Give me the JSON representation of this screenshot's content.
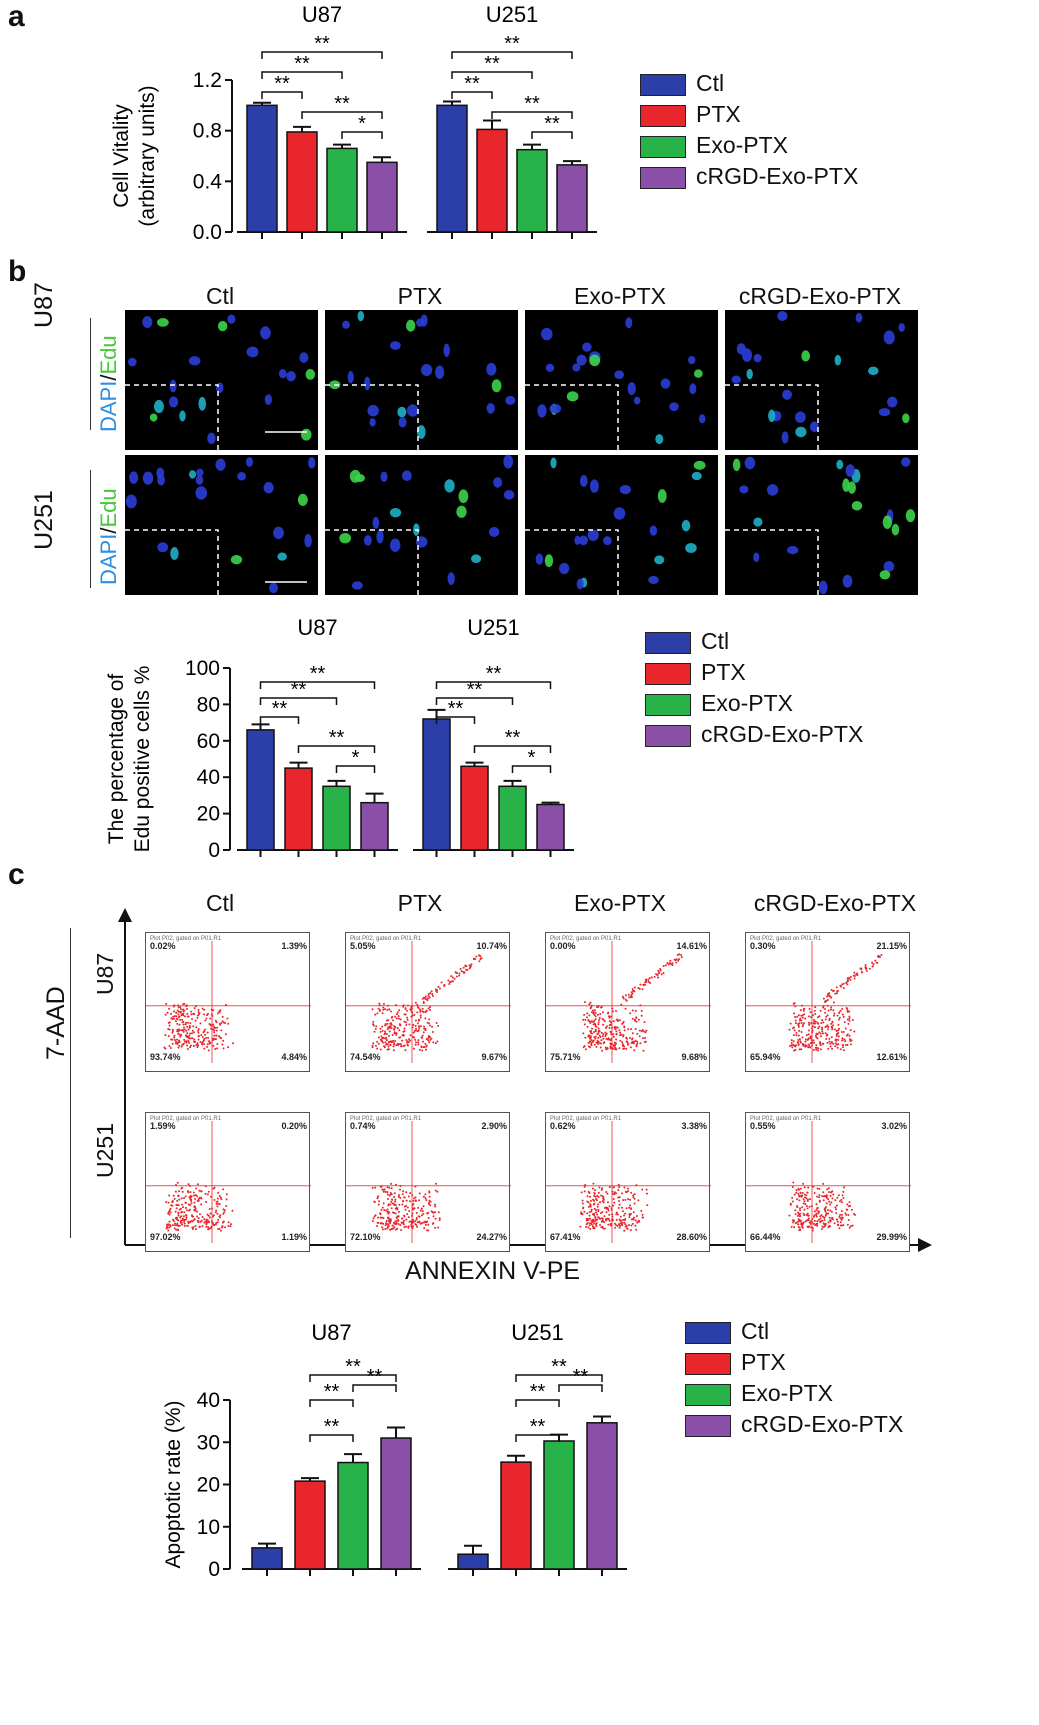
{
  "panels": {
    "a": "a",
    "b": "b",
    "c": "c"
  },
  "colors": {
    "ctl": "#2c3ea8",
    "ptx": "#e8262c",
    "exo": "#28b34a",
    "crgd": "#8a4fa6"
  },
  "legend": [
    "Ctl",
    "PTX",
    "Exo-PTX",
    "cRGD-Exo-PTX"
  ],
  "chart_data": [
    {
      "id": "cell-vitality",
      "type": "bar",
      "groups": [
        "U87",
        "U251"
      ],
      "categories": [
        "Ctl",
        "PTX",
        "Exo-PTX",
        "cRGD-Exo-PTX"
      ],
      "series": [
        {
          "name": "U87",
          "values": [
            1.0,
            0.79,
            0.66,
            0.55
          ],
          "errors": [
            0.02,
            0.04,
            0.03,
            0.04
          ]
        },
        {
          "name": "U251",
          "values": [
            1.0,
            0.81,
            0.65,
            0.53
          ],
          "errors": [
            0.03,
            0.07,
            0.04,
            0.03
          ]
        }
      ],
      "ylabel_line1": "Cell Vitality",
      "ylabel_line2": "(arbitrary units)",
      "yticks": [
        "0.0",
        "0.4",
        "0.8",
        "1.2"
      ],
      "ylim": [
        0,
        1.2
      ],
      "significance": [
        "**",
        "**",
        "**",
        "**",
        "*",
        "**",
        "**",
        "**",
        "**",
        "**"
      ]
    },
    {
      "id": "edu-percentage",
      "type": "bar",
      "groups": [
        "U87",
        "U251"
      ],
      "categories": [
        "Ctl",
        "PTX",
        "Exo-PTX",
        "cRGD-Exo-PTX"
      ],
      "series": [
        {
          "name": "U87",
          "values": [
            66,
            45,
            35,
            26
          ],
          "errors": [
            3,
            3,
            3,
            5
          ]
        },
        {
          "name": "U251",
          "values": [
            72,
            46,
            35,
            25
          ],
          "errors": [
            5,
            2,
            3,
            1
          ]
        }
      ],
      "ylabel_line1": "The percentage of",
      "ylabel_line2": "Edu positive cells %",
      "yticks": [
        "0",
        "20",
        "40",
        "60",
        "80",
        "100"
      ],
      "ylim": [
        0,
        100
      ],
      "significance": [
        "**",
        "**",
        "**",
        "**",
        "*",
        "**",
        "**",
        "**",
        "**",
        "*"
      ]
    },
    {
      "id": "apoptotic-rate",
      "type": "bar",
      "groups": [
        "U87",
        "U251"
      ],
      "categories": [
        "Ctl",
        "PTX",
        "Exo-PTX",
        "cRGD-Exo-PTX"
      ],
      "series": [
        {
          "name": "U87",
          "values": [
            5,
            20.8,
            25.2,
            31
          ],
          "errors": [
            1,
            0.7,
            2,
            2.5
          ]
        },
        {
          "name": "U251",
          "values": [
            3.5,
            25.3,
            30.3,
            34.6
          ],
          "errors": [
            2,
            1.5,
            1.5,
            1.5
          ]
        }
      ],
      "ylabel": "Apoptotic rate (%)",
      "yticks": [
        "0",
        "10",
        "20",
        "30",
        "40"
      ],
      "ylim": [
        0,
        40
      ],
      "significance": [
        "**",
        "**",
        "**",
        "**",
        "**",
        "**",
        "**",
        "**",
        "**",
        "**"
      ]
    }
  ],
  "microscopy": {
    "columns": [
      "Ctl",
      "PTX",
      "Exo-PTX",
      "cRGD-Exo-PTX"
    ],
    "rows": [
      "U87",
      "U251"
    ],
    "stain_dapi": "DAPI",
    "stain_slash": "/",
    "stain_edu": "Edu"
  },
  "flow": {
    "columns": [
      "Ctl",
      "PTX",
      "Exo-PTX",
      "cRGD-Exo-PTX"
    ],
    "rows": [
      "U87",
      "U251"
    ],
    "xlabel": "ANNEXIN V-PE",
    "ylabel": "7-AAD",
    "plot_header": "Plot P02, gated on P01.R1",
    "quadrants": [
      [
        [
          "0.02%",
          "1.39%",
          "93.74%",
          "4.84%"
        ],
        [
          "5.05%",
          "10.74%",
          "74.54%",
          "9.67%"
        ],
        [
          "0.00%",
          "14.61%",
          "75.71%",
          "9.68%"
        ],
        [
          "0.30%",
          "21.15%",
          "65.94%",
          "12.61%"
        ]
      ],
      [
        [
          "1.59%",
          "0.20%",
          "97.02%",
          "1.19%"
        ],
        [
          "0.74%",
          "2.90%",
          "72.10%",
          "24.27%"
        ],
        [
          "0.62%",
          "3.38%",
          "67.41%",
          "28.60%"
        ],
        [
          "0.55%",
          "3.02%",
          "66.44%",
          "29.99%"
        ]
      ]
    ]
  }
}
